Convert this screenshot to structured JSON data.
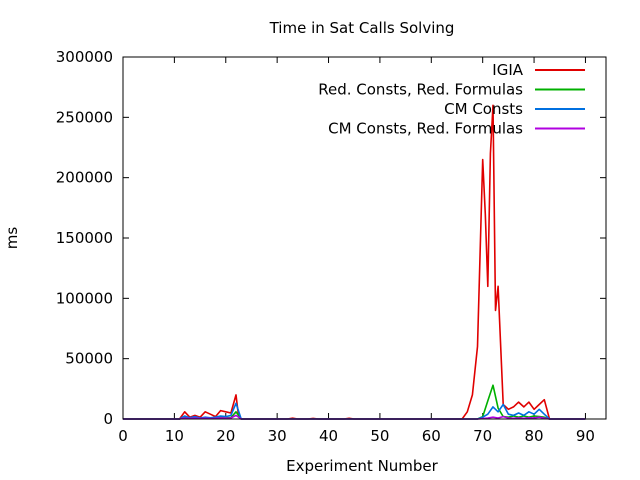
{
  "chart_data": {
    "type": "line",
    "title": "Time in Sat Calls Solving",
    "xlabel": "Experiment Number",
    "ylabel": "ms",
    "xlim": [
      0,
      94
    ],
    "ylim": [
      0,
      300000
    ],
    "xticks": [
      0,
      10,
      20,
      30,
      40,
      50,
      60,
      70,
      80,
      90
    ],
    "yticks": [
      0,
      50000,
      100000,
      150000,
      200000,
      250000,
      300000
    ],
    "xtick_labels": [
      "0",
      "10",
      "20",
      "30",
      "40",
      "50",
      "60",
      "70",
      "80",
      "90"
    ],
    "ytick_labels": [
      "0",
      "50000",
      "100000",
      "150000",
      "200000",
      "250000",
      "300000"
    ],
    "grid": false,
    "legend_position": "top-right",
    "series": [
      {
        "name": "IGIA",
        "color": "#e00000",
        "points": [
          [
            0,
            0
          ],
          [
            11,
            0
          ],
          [
            12,
            6000
          ],
          [
            13,
            1500
          ],
          [
            14,
            3000
          ],
          [
            15,
            1500
          ],
          [
            16,
            6000
          ],
          [
            17,
            4000
          ],
          [
            18,
            2000
          ],
          [
            19,
            7000
          ],
          [
            20,
            6000
          ],
          [
            21,
            5000
          ],
          [
            22,
            20000
          ],
          [
            22.5,
            2000
          ],
          [
            23,
            0
          ],
          [
            32,
            0
          ],
          [
            33,
            700
          ],
          [
            34,
            0
          ],
          [
            36,
            0
          ],
          [
            37,
            500
          ],
          [
            38,
            0
          ],
          [
            43,
            0
          ],
          [
            44,
            600
          ],
          [
            45,
            0
          ],
          [
            66,
            0
          ],
          [
            67,
            6000
          ],
          [
            68,
            20000
          ],
          [
            69,
            60000
          ],
          [
            70,
            215000
          ],
          [
            70.5,
            170000
          ],
          [
            71,
            110000
          ],
          [
            71.5,
            220000
          ],
          [
            72,
            260000
          ],
          [
            72.5,
            90000
          ],
          [
            73,
            110000
          ],
          [
            74,
            12000
          ],
          [
            75,
            8000
          ],
          [
            76,
            10000
          ],
          [
            77,
            14000
          ],
          [
            78,
            10000
          ],
          [
            79,
            14000
          ],
          [
            80,
            8000
          ],
          [
            81,
            12000
          ],
          [
            82,
            16000
          ],
          [
            83,
            0
          ],
          [
            90,
            0
          ]
        ]
      },
      {
        "name": "Red. Consts, Red. Formulas",
        "color": "#00b000",
        "points": [
          [
            0,
            0
          ],
          [
            11,
            0
          ],
          [
            12,
            1500
          ],
          [
            13,
            800
          ],
          [
            14,
            1500
          ],
          [
            15,
            600
          ],
          [
            16,
            1200
          ],
          [
            17,
            500
          ],
          [
            18,
            800
          ],
          [
            19,
            1500
          ],
          [
            20,
            1000
          ],
          [
            21,
            1200
          ],
          [
            22,
            6000
          ],
          [
            23,
            0
          ],
          [
            69,
            0
          ],
          [
            70,
            2000
          ],
          [
            71,
            15000
          ],
          [
            72,
            28000
          ],
          [
            73,
            9000
          ],
          [
            74,
            2000
          ],
          [
            75,
            1500
          ],
          [
            76,
            2500
          ],
          [
            77,
            1500
          ],
          [
            78,
            2500
          ],
          [
            79,
            1500
          ],
          [
            80,
            2500
          ],
          [
            81,
            2000
          ],
          [
            82,
            1500
          ],
          [
            83,
            0
          ],
          [
            90,
            0
          ]
        ]
      },
      {
        "name": "CM Consts",
        "color": "#0070e0",
        "points": [
          [
            0,
            0
          ],
          [
            11,
            0
          ],
          [
            12,
            2500
          ],
          [
            13,
            1000
          ],
          [
            14,
            2000
          ],
          [
            15,
            800
          ],
          [
            16,
            1500
          ],
          [
            17,
            1000
          ],
          [
            18,
            1500
          ],
          [
            19,
            2500
          ],
          [
            20,
            2000
          ],
          [
            21,
            3000
          ],
          [
            22,
            13000
          ],
          [
            23,
            0
          ],
          [
            69,
            0
          ],
          [
            70,
            1500
          ],
          [
            71,
            4000
          ],
          [
            72,
            10000
          ],
          [
            73,
            6000
          ],
          [
            74,
            12000
          ],
          [
            75,
            4000
          ],
          [
            76,
            3000
          ],
          [
            77,
            5000
          ],
          [
            78,
            3000
          ],
          [
            79,
            6000
          ],
          [
            80,
            4000
          ],
          [
            81,
            8000
          ],
          [
            82,
            4000
          ],
          [
            83,
            0
          ],
          [
            90,
            0
          ]
        ]
      },
      {
        "name": "CM Consts, Red. Formulas",
        "color": "#b000e0",
        "points": [
          [
            0,
            0
          ],
          [
            11,
            0
          ],
          [
            12,
            800
          ],
          [
            13,
            400
          ],
          [
            14,
            700
          ],
          [
            15,
            300
          ],
          [
            16,
            600
          ],
          [
            17,
            300
          ],
          [
            18,
            500
          ],
          [
            19,
            900
          ],
          [
            20,
            700
          ],
          [
            21,
            800
          ],
          [
            22,
            3000
          ],
          [
            23,
            0
          ],
          [
            69,
            0
          ],
          [
            70,
            300
          ],
          [
            71,
            800
          ],
          [
            72,
            1500
          ],
          [
            73,
            800
          ],
          [
            74,
            2000
          ],
          [
            75,
            800
          ],
          [
            76,
            600
          ],
          [
            77,
            900
          ],
          [
            78,
            600
          ],
          [
            79,
            1000
          ],
          [
            80,
            800
          ],
          [
            81,
            1500
          ],
          [
            82,
            700
          ],
          [
            83,
            0
          ],
          [
            90,
            0
          ]
        ]
      }
    ]
  }
}
